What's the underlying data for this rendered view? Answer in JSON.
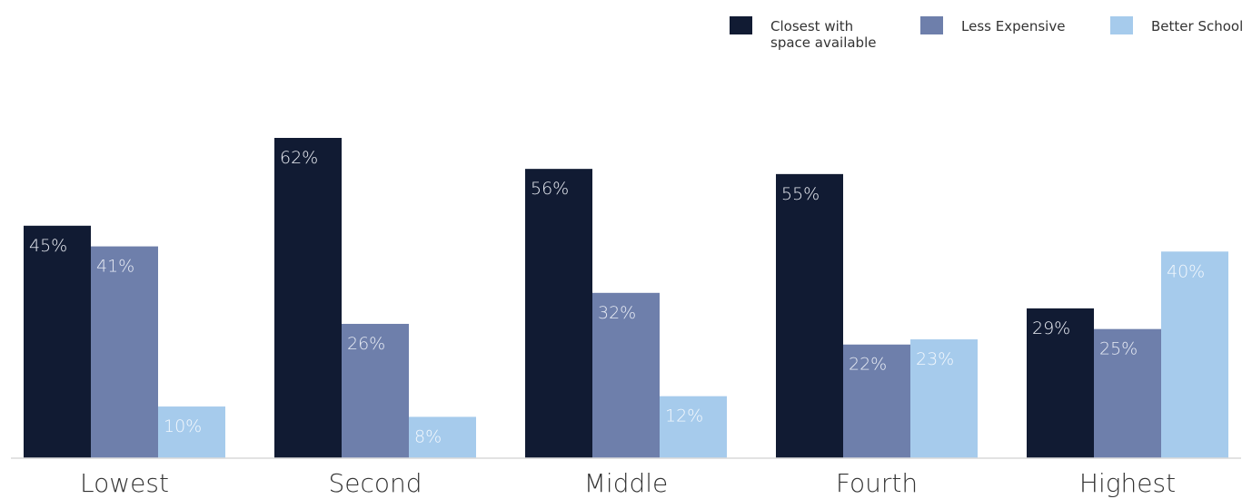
{
  "chart_data": {
    "type": "bar",
    "categories": [
      "Lowest",
      "Second",
      "Middle",
      "Fourth",
      "Highest"
    ],
    "series": [
      {
        "name": "Closest with space available",
        "name_lines": [
          "Closest with",
          "space available"
        ],
        "values": [
          45,
          62,
          56,
          55,
          29
        ],
        "labels": [
          "45%",
          "62%",
          "56%",
          "55%",
          "29%"
        ],
        "color": "#111b33",
        "label_color": "#e9ecf3"
      },
      {
        "name": "Less Expensive",
        "name_lines": [
          "Less Expensive"
        ],
        "values": [
          41,
          26,
          32,
          22,
          25
        ],
        "labels": [
          "41%",
          "26%",
          "32%",
          "22%",
          "25%"
        ],
        "color": "#6e7fab",
        "label_color": "#e7ebf4"
      },
      {
        "name": "Better School",
        "name_lines": [
          "Better School"
        ],
        "values": [
          10,
          8,
          12,
          23,
          40
        ],
        "labels": [
          "10%",
          "8%",
          "12%",
          "23%",
          "40%"
        ],
        "color": "#a6cbec",
        "label_color": "#f3f8fd"
      }
    ],
    "title": "",
    "xlabel": "",
    "ylabel": "",
    "ylim": [
      0,
      70
    ],
    "grid": false,
    "legend_position": "top-right"
  }
}
